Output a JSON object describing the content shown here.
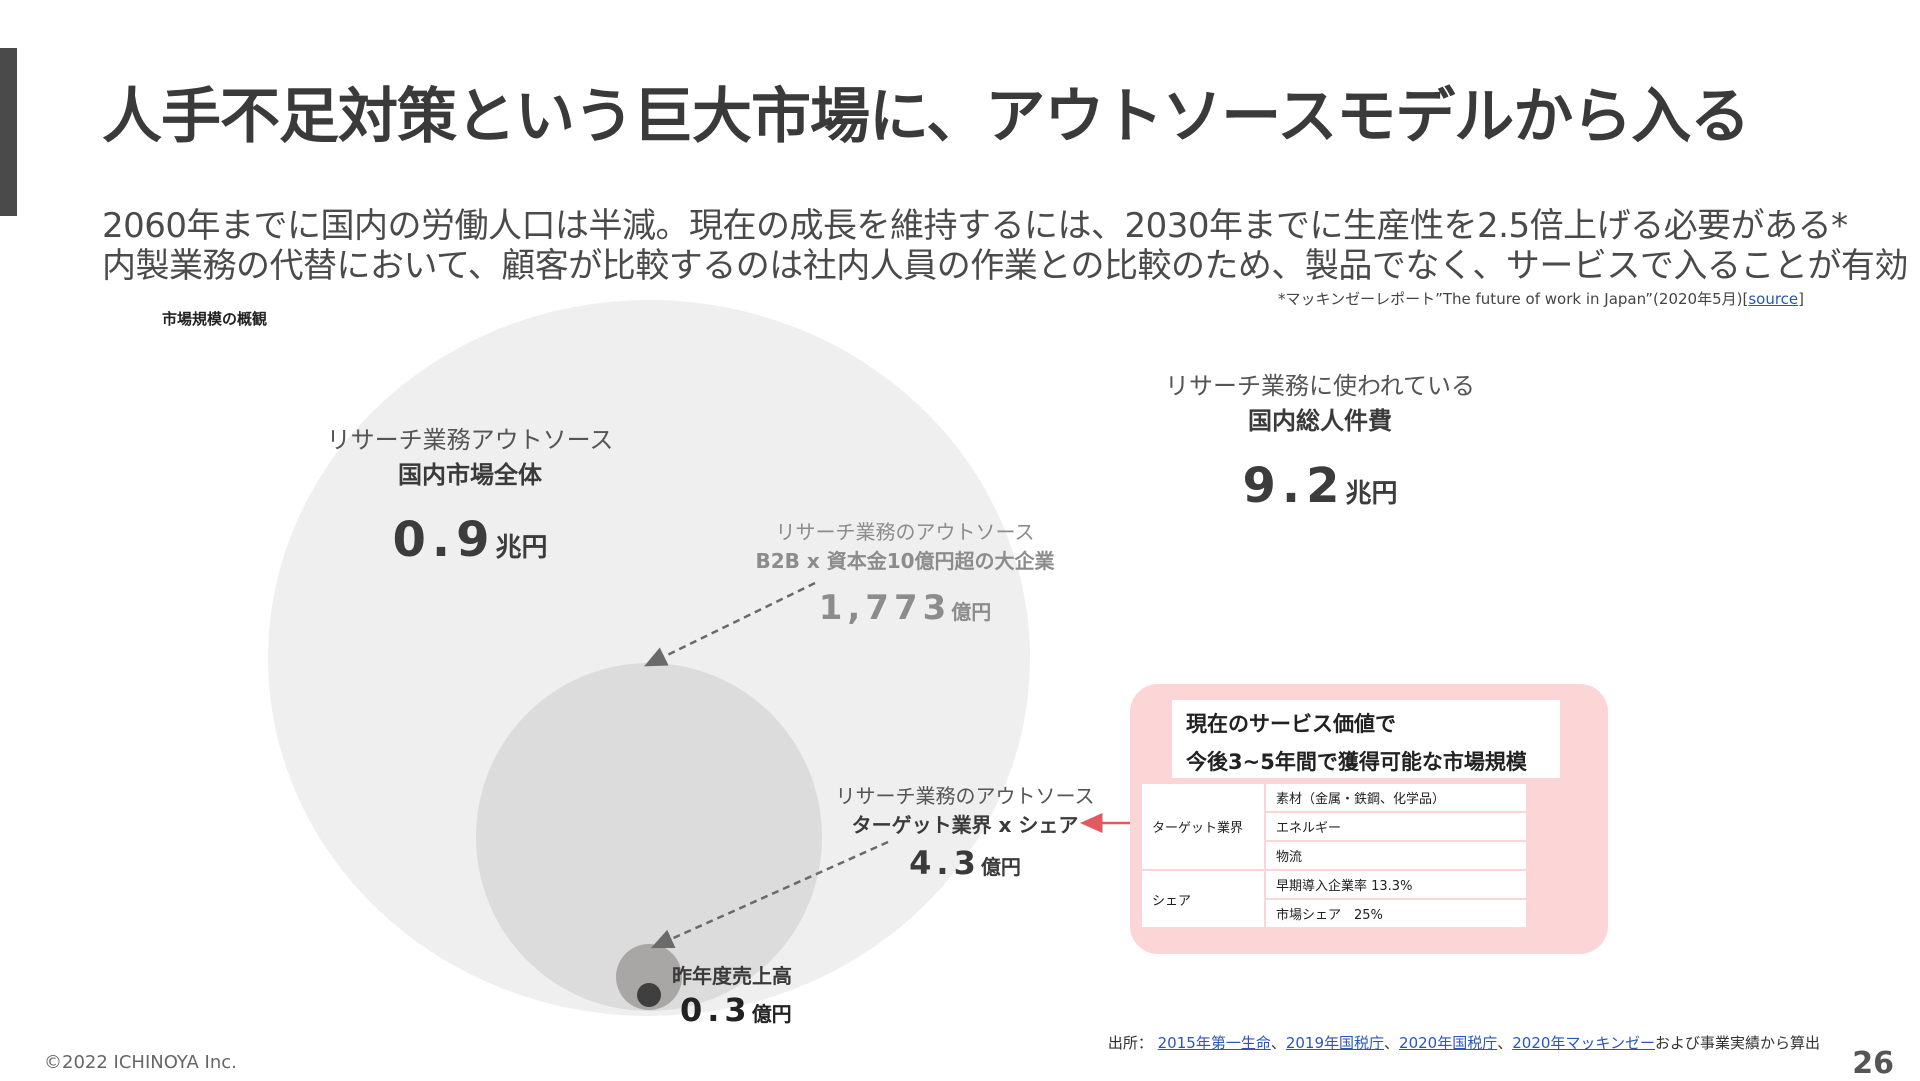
{
  "header": {
    "title": "人手不足対策という巨大市場に、アウトソースモデルから入る",
    "subtitle_line1": "2060年までに国内の労働人口は半減。現在の成長を維持するには、2030年までに生産性を2.5倍上げる必要がある*",
    "subtitle_line2": "内製業務の代替において、顧客が比較するのは社内人員の作業との比較のため、製品でなく、サービスで入ることが有効"
  },
  "footnote": {
    "text": "*マッキンゼーレポート”The future of work in Japan”(2020年5月)[",
    "link": "source",
    "close": "]"
  },
  "section_label": "市場規模の概観",
  "market": {
    "total_labor": {
      "line1": "リサーチ業務に使われている",
      "line2": "国内総人件費",
      "value": "9.2",
      "unit": "兆円"
    },
    "outsource_all": {
      "line1": "リサーチ業務アウトソース",
      "line2": "国内市場全体",
      "value": "0.9",
      "unit": "兆円"
    },
    "b2b": {
      "line1": "リサーチ業務のアウトソース",
      "line2": "B2B x 資本金10億円超の大企業",
      "value": "1,773",
      "unit": "億円"
    },
    "target": {
      "line1": "リサーチ業務のアウトソース",
      "line2": "ターゲット業界 x シェア",
      "value": "4.3",
      "unit": "億円"
    },
    "sales": {
      "line1": "昨年度売上高",
      "value": "0.3",
      "unit": "億円"
    }
  },
  "obtainable": {
    "heading_line1": "現在のサービス価値で",
    "heading_line2": "今後3~5年間で獲得可能な市場規模",
    "rows": [
      {
        "label": "ターゲット業界",
        "items": [
          "素材（金属・鉄鋼、化学品）",
          "エネルギー",
          "物流"
        ]
      },
      {
        "label": "シェア",
        "items": [
          "早期導入企業率 13.3%",
          "市場シェア　25%"
        ]
      }
    ]
  },
  "sources": {
    "prefix": "出所：",
    "links": [
      "2015年第一生命",
      "2019年国税庁",
      "2020年国税庁",
      "2020年マッキンゼー"
    ],
    "sep": "、",
    "suffix": "および事業実績から算出"
  },
  "footer": {
    "copyright": "©2022 ICHINOYA Inc.",
    "page": "26"
  },
  "colors": {
    "box_pink": "#fcd5d7",
    "arrow_red": "#e05a5f",
    "link_blue": "#2a56b8"
  }
}
